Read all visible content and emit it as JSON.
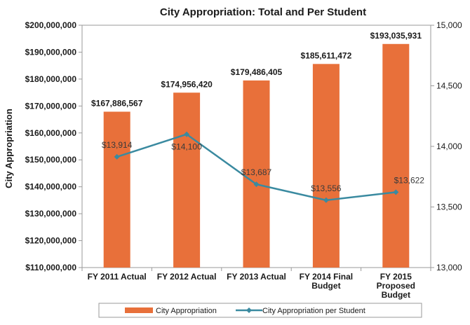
{
  "chart_data": {
    "type": "bar",
    "title": "City Appropriation:  Total and Per Student",
    "ylabel": "City Appropriation",
    "xlabel": "",
    "categories": [
      [
        "FY 2011 Actual"
      ],
      [
        "FY 2012 Actual"
      ],
      [
        "FY 2013 Actual"
      ],
      [
        "FY 2014 Final",
        "Budget"
      ],
      [
        "FY 2015",
        "Proposed",
        "Budget"
      ]
    ],
    "series": [
      {
        "name": "City Appropriation",
        "type": "bar",
        "axis": "left",
        "color": "#e8703a",
        "values": [
          167886567,
          174956420,
          179486405,
          185611472,
          193035931
        ],
        "labels": [
          "$167,886,567",
          "$174,956,420",
          "$179,486,405",
          "$185,611,472",
          "$193,035,931"
        ]
      },
      {
        "name": "City Appropriation per Student",
        "type": "line",
        "axis": "right",
        "color": "#3a8aa0",
        "values": [
          13914,
          14100,
          13687,
          13556,
          13622
        ],
        "labels": [
          "$13,914",
          "$14,100",
          "$13,687",
          "$13,556",
          "$13,622"
        ]
      }
    ],
    "y_left": {
      "ylim": [
        110000000,
        200000000
      ],
      "ticks": [
        110000000,
        120000000,
        130000000,
        140000000,
        150000000,
        160000000,
        170000000,
        180000000,
        190000000,
        200000000
      ],
      "tick_labels": [
        "$110,000,000",
        "$120,000,000",
        "$130,000,000",
        "$140,000,000",
        "$150,000,000",
        "$160,000,000",
        "$170,000,000",
        "$180,000,000",
        "$190,000,000",
        "$200,000,000"
      ]
    },
    "y_right": {
      "ylim": [
        13000,
        15000
      ],
      "ticks": [
        13000,
        13500,
        14000,
        14500,
        15000
      ],
      "tick_labels": [
        "13,000",
        "13,500",
        "14,000",
        "14,500",
        "15,000"
      ]
    },
    "legend": {
      "position": "bottom",
      "entries": [
        "City Appropriation",
        "City Appropriation per Student"
      ]
    },
    "grid": false
  }
}
